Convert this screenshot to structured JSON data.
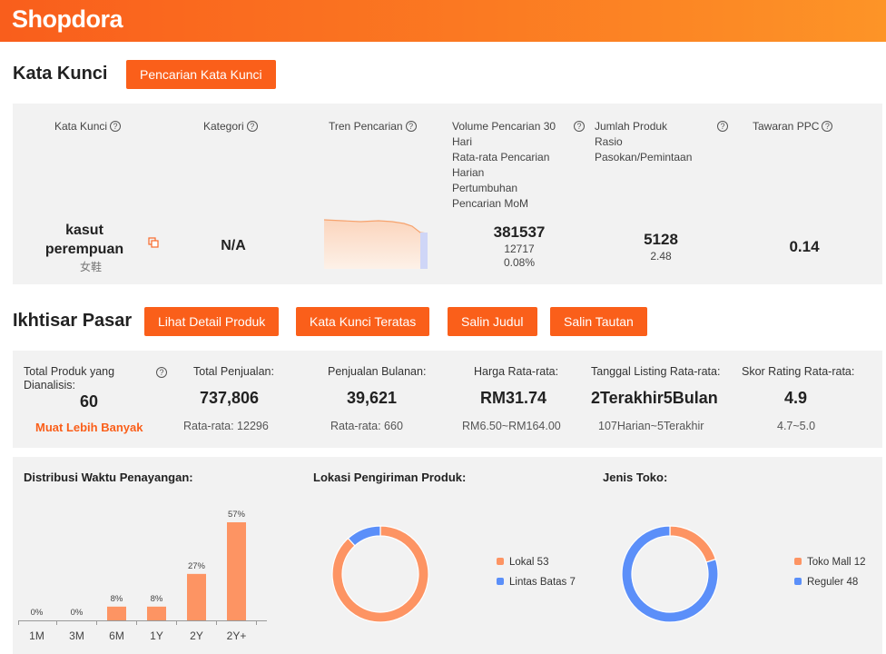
{
  "header": {
    "logo": "Shopdora"
  },
  "keywords": {
    "title": "Kata Kunci",
    "search_button": "Pencarian Kata Kunci",
    "columns": {
      "keyword": "Kata Kunci",
      "category": "Kategori",
      "trend": "Tren Pencarian",
      "volume_lines": [
        "Volume Pencarian 30",
        "Hari",
        "Rata-rata Pencarian",
        "Harian",
        "Pertumbuhan",
        "Pencarian MoM"
      ],
      "products_lines": [
        "Jumlah Produk",
        "Rasio",
        "Pasokan/Pemintaan"
      ],
      "ppc": "Tawaran PPC"
    },
    "row": {
      "keyword_line1": "kasut",
      "keyword_line2": "perempuan",
      "translation": "女鞋",
      "category": "N/A",
      "volume": "381537",
      "daily_avg": "12717",
      "mom_growth": "0.08%",
      "product_count": "5128",
      "ratio": "2.48",
      "ppc": "0.14"
    }
  },
  "market": {
    "title": "Ikhtisar Pasar",
    "buttons": [
      "Lihat Detail Produk",
      "Kata Kunci Teratas",
      "Salin Judul",
      "Salin Tautan"
    ],
    "analyzed_label_line1": "Total Produk yang",
    "analyzed_label_line2": "Dianalisis:",
    "analyzed_value": "60",
    "load_more": "Muat Lebih Banyak",
    "metrics": [
      {
        "label": "Total Penjualan:",
        "value": "737,806",
        "sub": "Rata-rata: 12296"
      },
      {
        "label": "Penjualan Bulanan:",
        "value": "39,621",
        "sub": "Rata-rata: 660"
      },
      {
        "label": "Harga Rata-rata:",
        "value": "RM31.74",
        "sub": "RM6.50~RM164.00"
      },
      {
        "label": "Tanggal Listing Rata-rata:",
        "value": "2Terakhir5Bulan",
        "sub": "107Harian~5Terakhir"
      },
      {
        "label": "Skor Rating Rata-rata:",
        "value": "4.9",
        "sub": "4.7~5.0"
      }
    ]
  },
  "colors": {
    "brand": "#fa5f1a",
    "bar": "#fd9463",
    "blue": "#5b8ff9",
    "orange": "#fd9463"
  },
  "chart_data": [
    {
      "type": "bar",
      "title": "Distribusi Waktu Penayangan:",
      "categories": [
        "1M",
        "3M",
        "6M",
        "1Y",
        "2Y",
        "2Y+"
      ],
      "values": [
        0,
        0,
        8,
        8,
        27,
        57
      ],
      "value_labels": [
        "0%",
        "0%",
        "8%",
        "8%",
        "27%",
        "57%"
      ]
    },
    {
      "type": "pie",
      "title": "Lokasi Pengiriman Produk:",
      "labels": [
        "Lokal",
        "Lintas Batas"
      ],
      "values": [
        53,
        7
      ],
      "legend": [
        "Lokal 53",
        "Lintas Batas 7"
      ]
    },
    {
      "type": "pie",
      "title": "Jenis Toko:",
      "labels": [
        "Toko Mall",
        "Reguler"
      ],
      "values": [
        12,
        48
      ],
      "legend": [
        "Toko Mall 12",
        "Reguler 48"
      ]
    }
  ]
}
